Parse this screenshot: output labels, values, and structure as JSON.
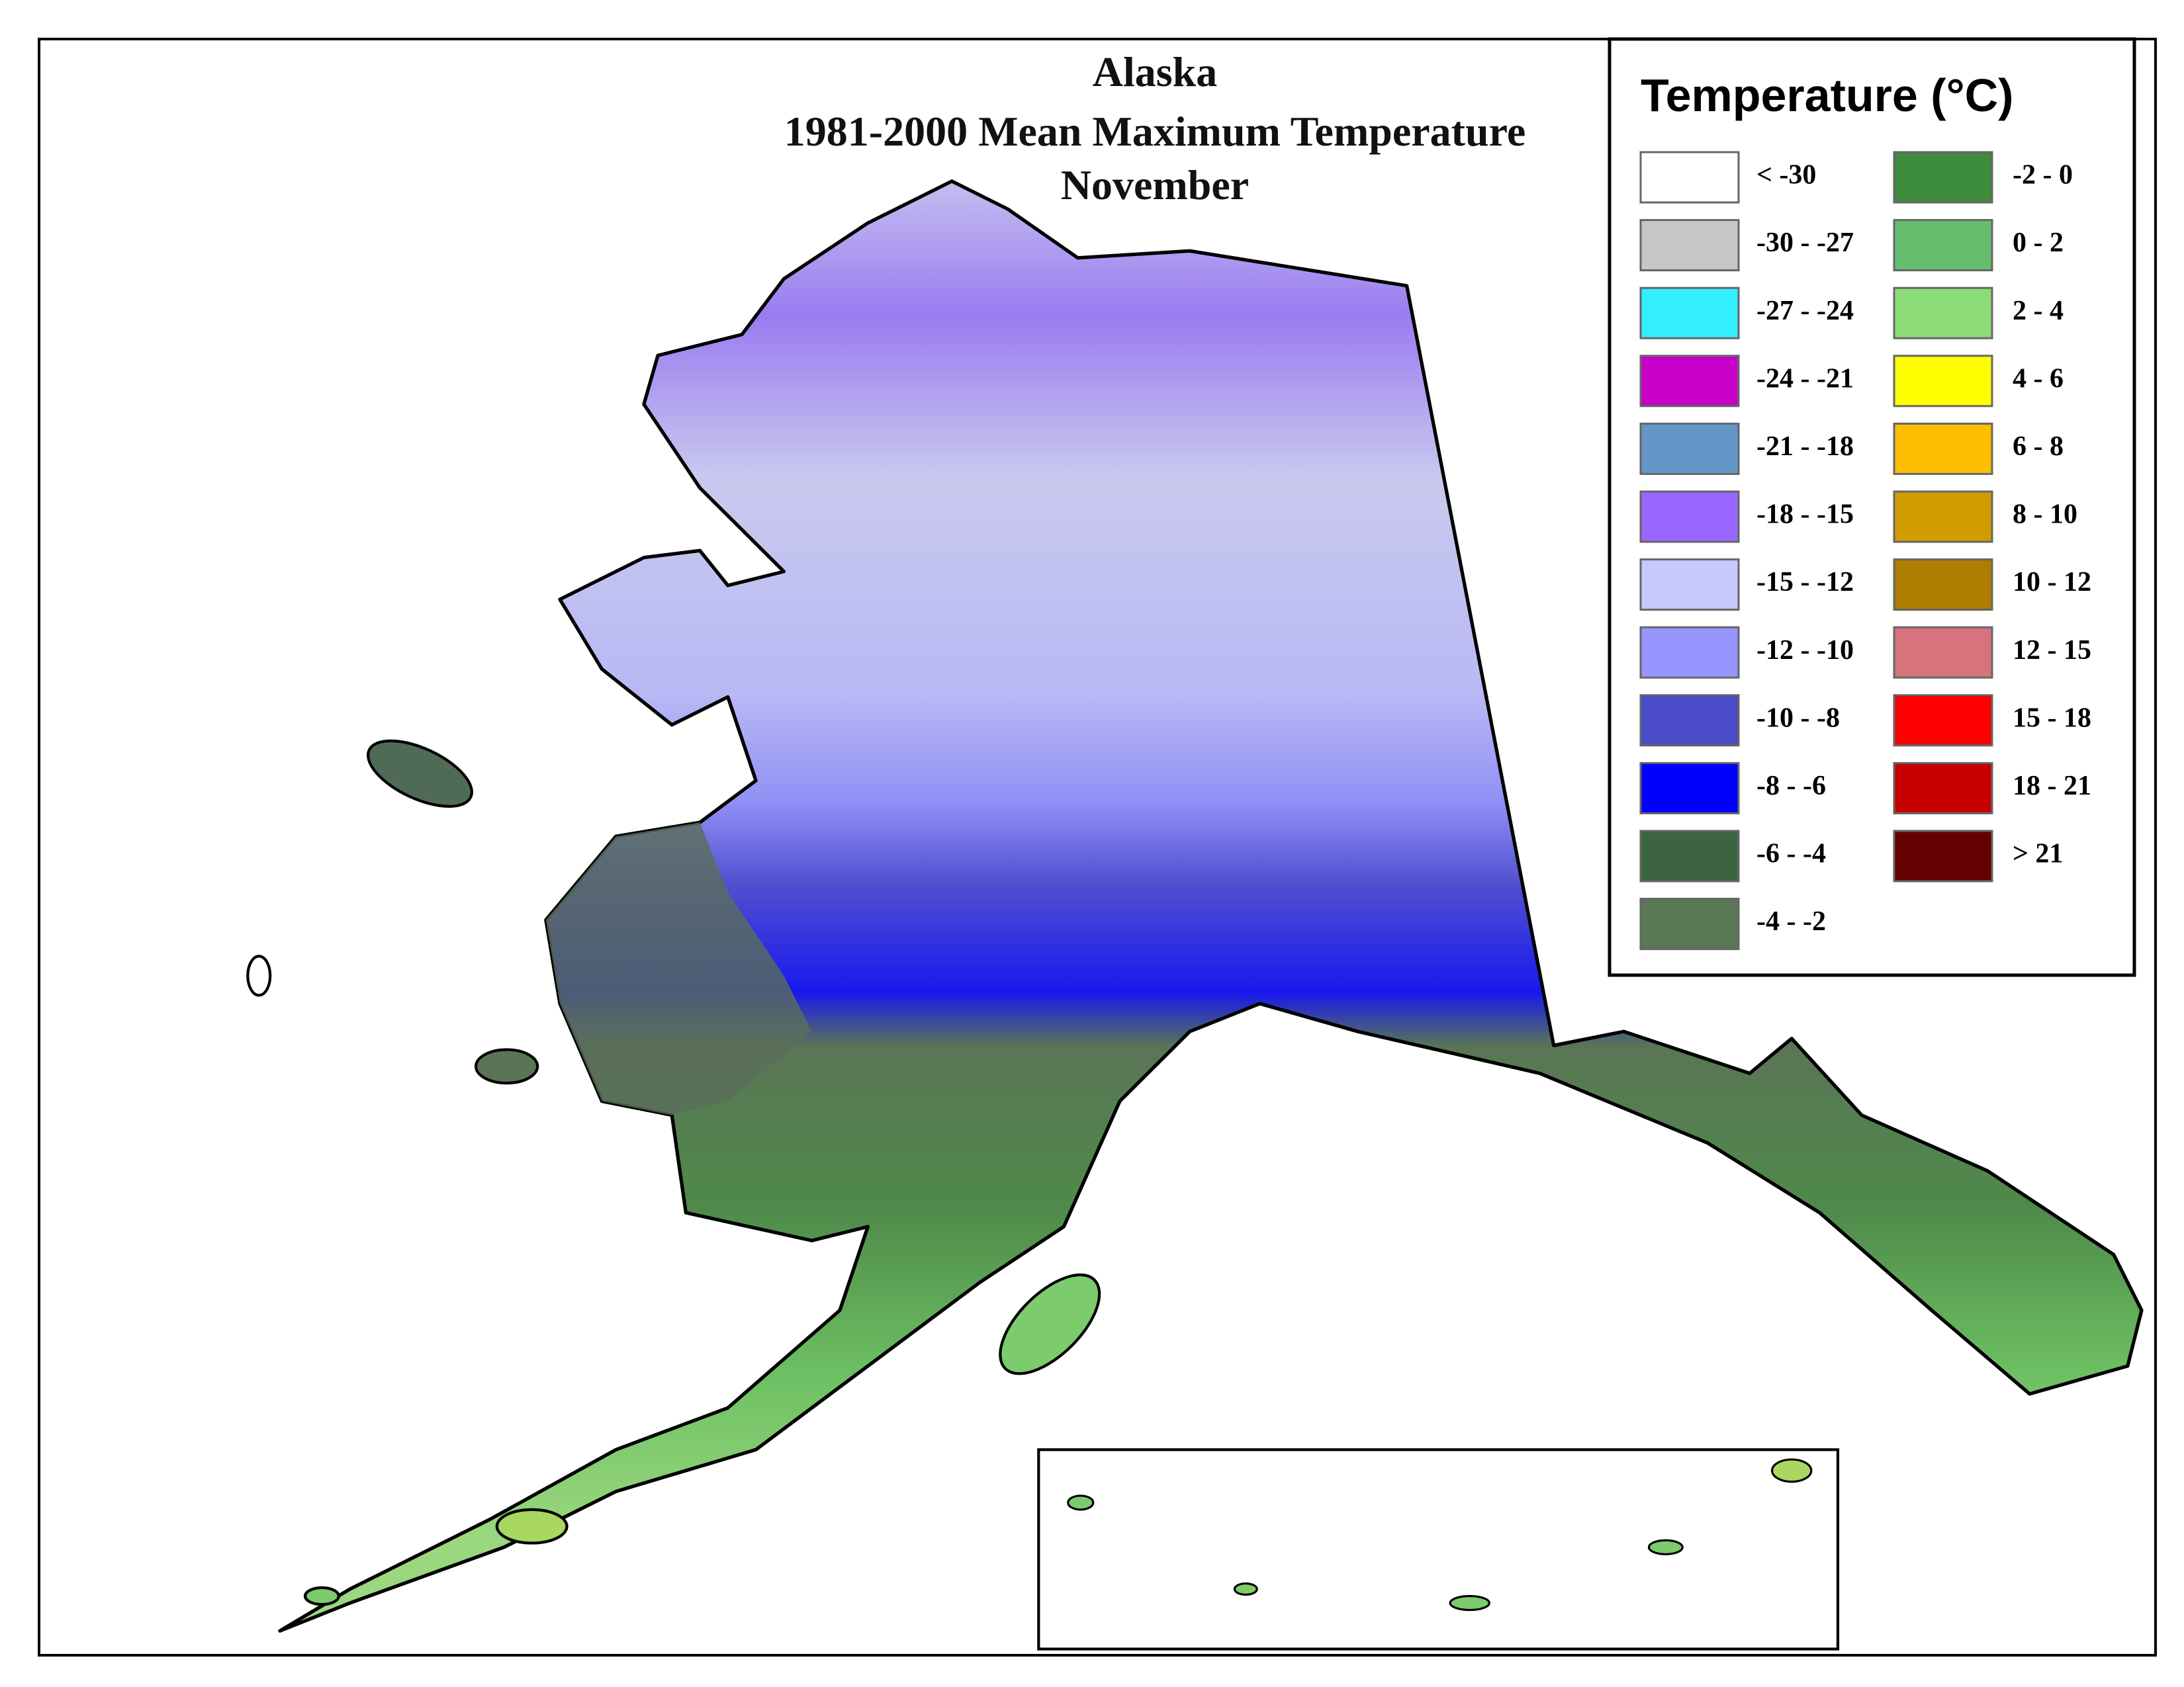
{
  "title": [
    "Alaska",
    "1981-2000 Mean Maximum Temperature",
    "November"
  ],
  "legend": {
    "title": "Temperature (°C)",
    "items": [
      {
        "label": "< -30",
        "color": "#ffffff"
      },
      {
        "label": "-30 - -27",
        "color": "#c6c6c6"
      },
      {
        "label": "-27 - -24",
        "color": "#33eeff"
      },
      {
        "label": "-24 - -21",
        "color": "#c800c8"
      },
      {
        "label": "-21 - -18",
        "color": "#6496c8"
      },
      {
        "label": "-18 - -15",
        "color": "#9966ff"
      },
      {
        "label": "-15 - -12",
        "color": "#c8c8ff"
      },
      {
        "label": "-12 - -10",
        "color": "#9696ff"
      },
      {
        "label": "-10 - -8",
        "color": "#4b4bc8"
      },
      {
        "label": "-8 - -6",
        "color": "#0000ff"
      },
      {
        "label": "-6 - -4",
        "color": "#3c6441"
      },
      {
        "label": "-4 - -2",
        "color": "#5a7855"
      },
      {
        "label": "-2 - 0",
        "color": "#3c8c3c"
      },
      {
        "label": "0 - 2",
        "color": "#64be6e"
      },
      {
        "label": "2 - 4",
        "color": "#8cdc78"
      },
      {
        "label": "4 - 6",
        "color": "#ffff00"
      },
      {
        "label": "6 - 8",
        "color": "#ffbe00"
      },
      {
        "label": "8 - 10",
        "color": "#d29b00"
      },
      {
        "label": "10 - 12",
        "color": "#af7d00"
      },
      {
        "label": "12 - 15",
        "color": "#d7737d"
      },
      {
        "label": "15 - 18",
        "color": "#ff0000"
      },
      {
        "label": "18 - 21",
        "color": "#c80000"
      },
      {
        "label": "> 21",
        "color": "#640000"
      }
    ]
  }
}
